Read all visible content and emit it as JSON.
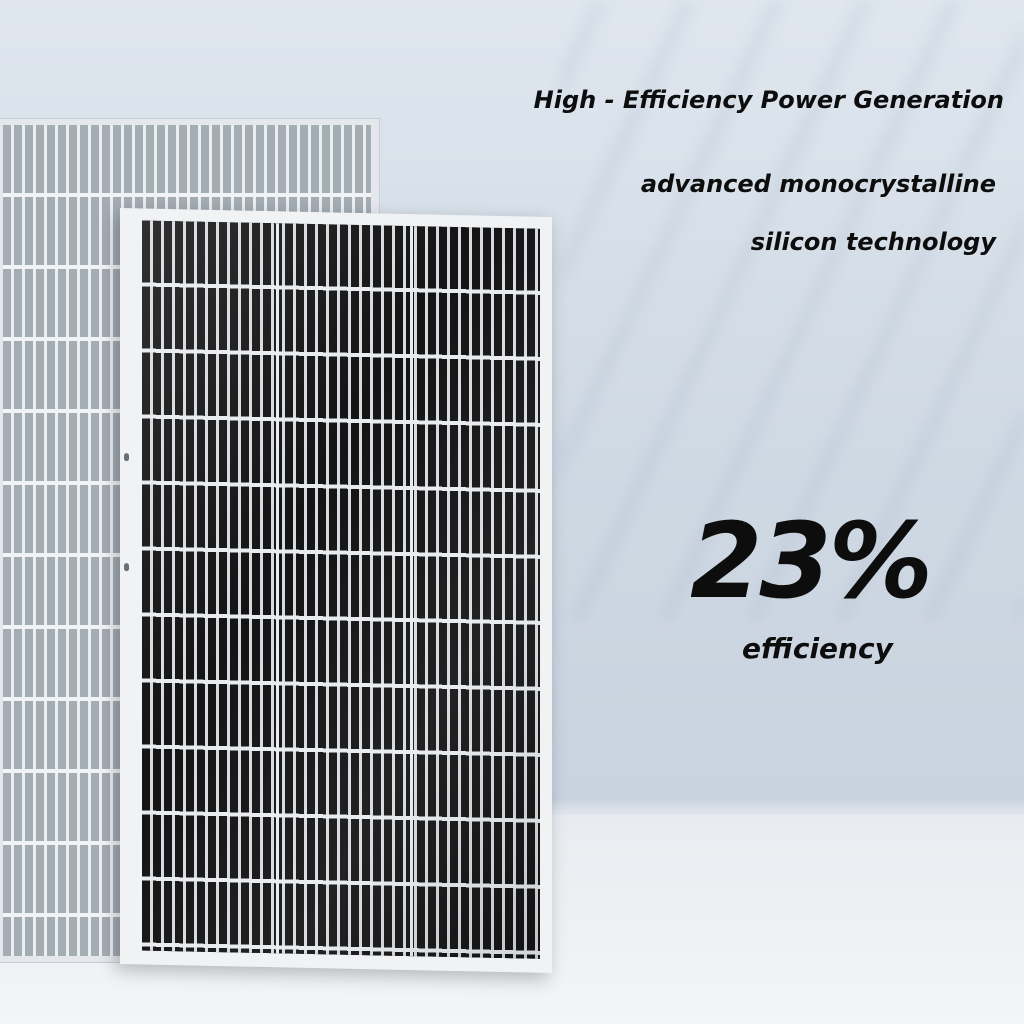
{
  "headline": "High - Efficiency Power Generation",
  "subline_1": "advanced monocrystalline",
  "subline_2": "silicon technology",
  "stat_value": "23%",
  "stat_label": "efficiency",
  "colors": {
    "text": "#0d0d0d",
    "background": "#dfe6ee",
    "cells": "#141414",
    "frame": "#f0f2f4"
  }
}
